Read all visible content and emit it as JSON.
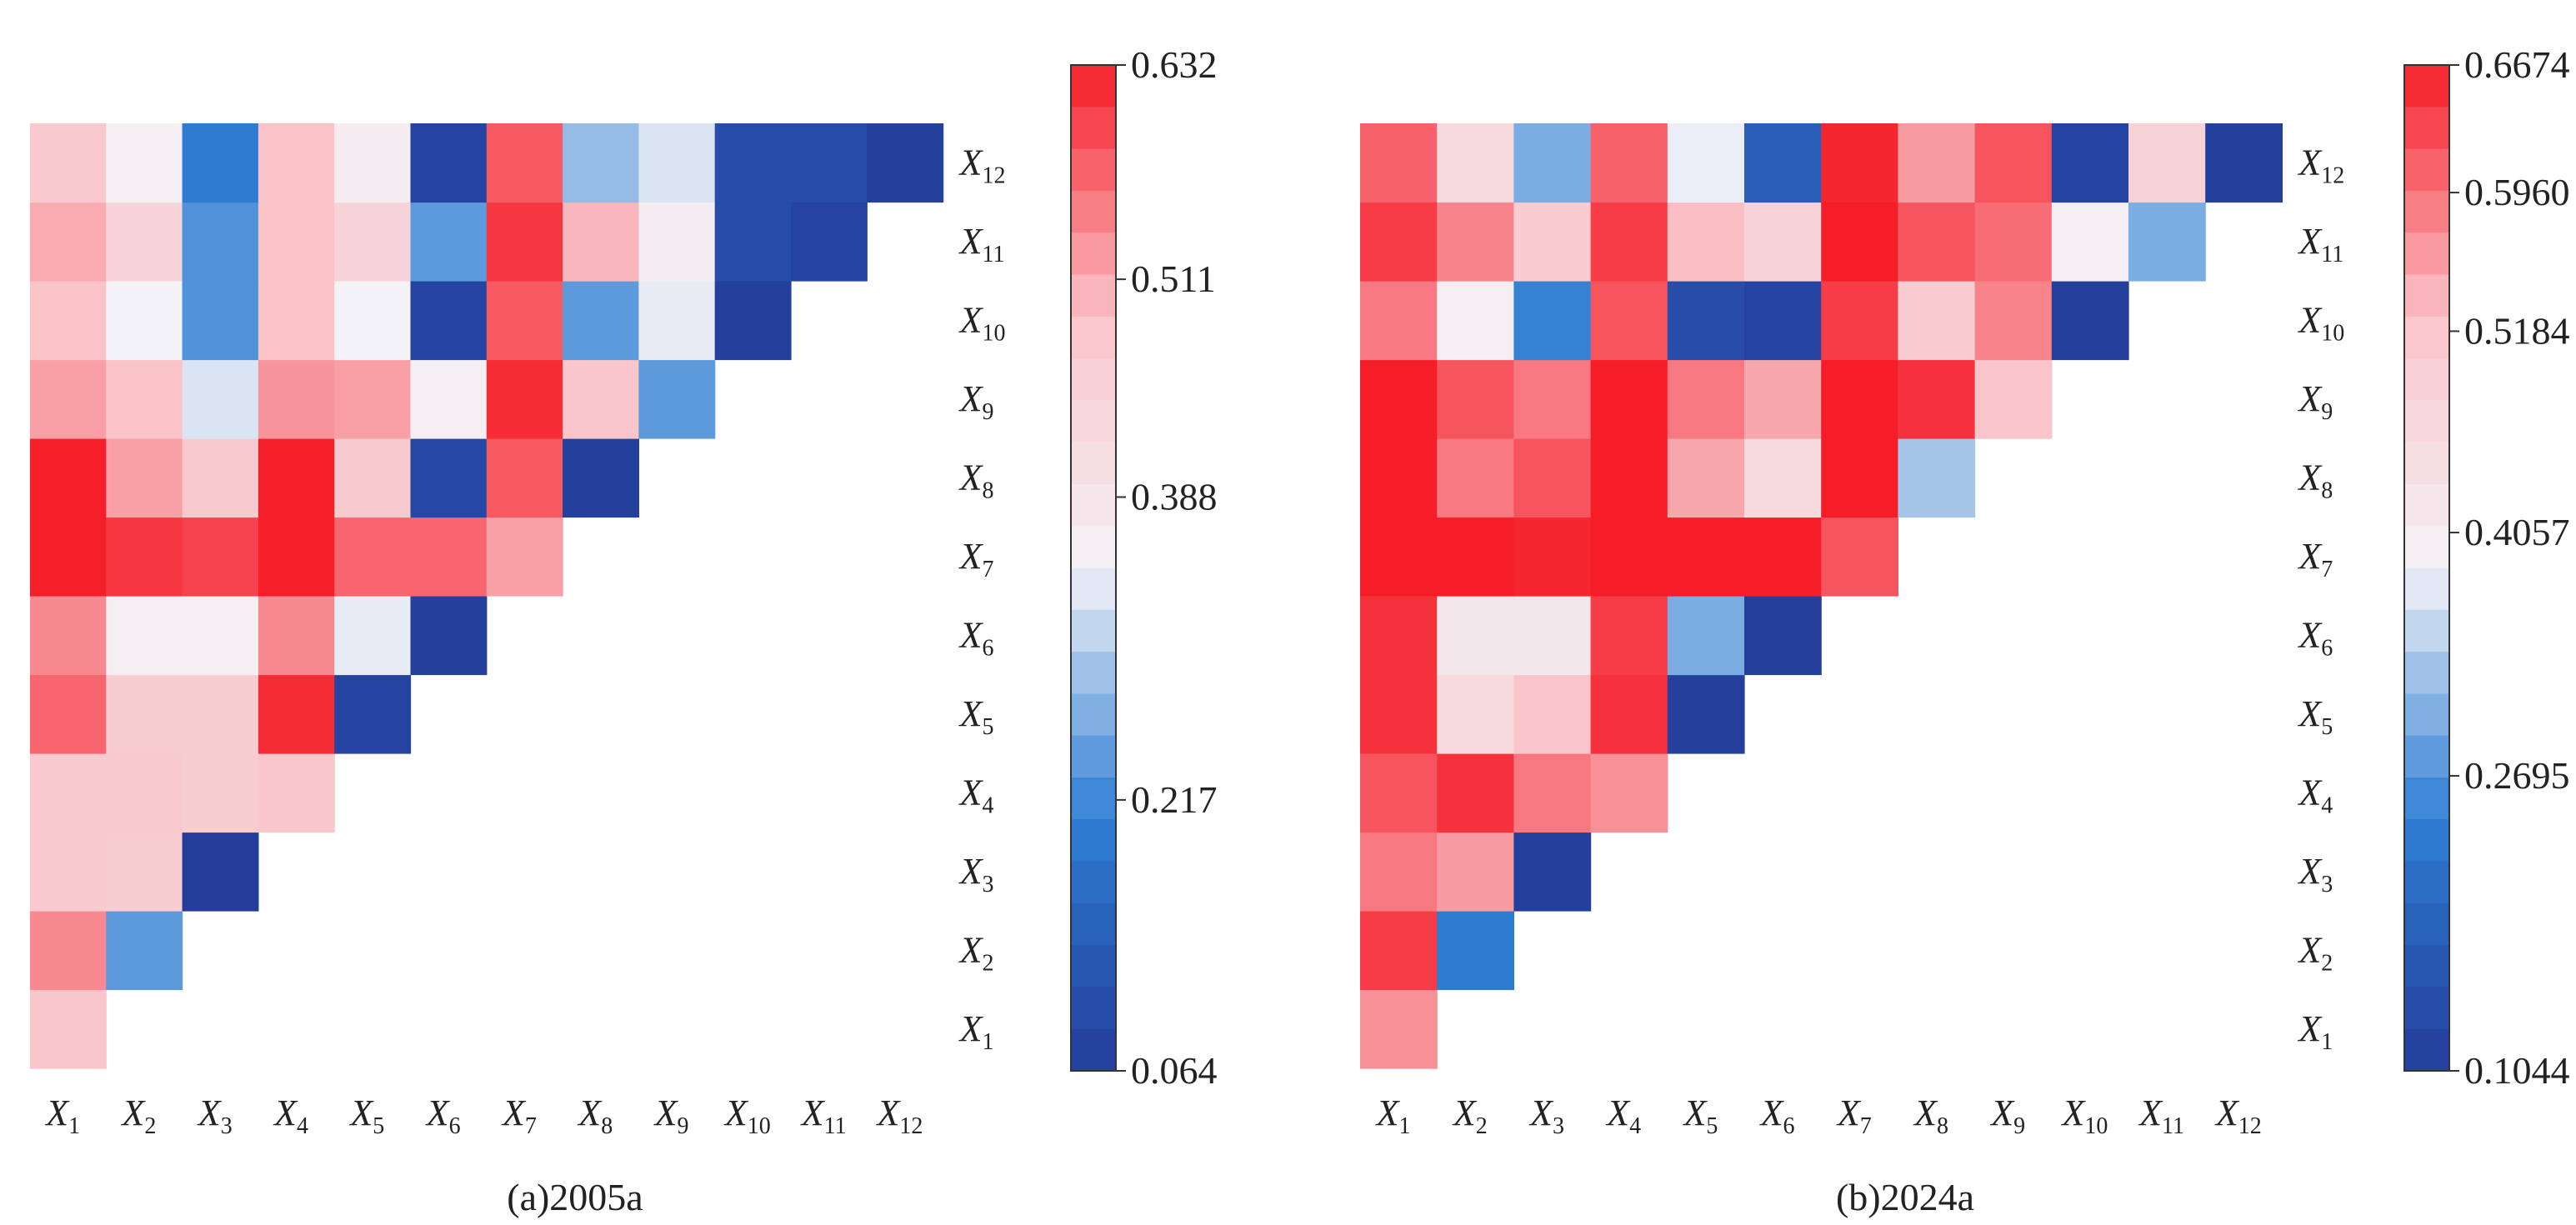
{
  "chart_data": [
    {
      "type": "heatmap",
      "title": "(a)2005a",
      "triangular": "lower",
      "row_labels": [
        "X1",
        "X2",
        "X3",
        "X4",
        "X5",
        "X6",
        "X7",
        "X8",
        "X9",
        "X10",
        "X11",
        "X12"
      ],
      "col_labels": [
        "X1",
        "X2",
        "X3",
        "X4",
        "X5",
        "X6",
        "X7",
        "X8",
        "X9",
        "X10",
        "X11",
        "X12"
      ],
      "colorbar": {
        "min": 0.064,
        "max": 0.632,
        "ticks": [
          "0.632",
          "0.511",
          "0.388",
          "0.217",
          "0.064"
        ],
        "tick_values": [
          0.632,
          0.511,
          0.388,
          0.217,
          0.064
        ]
      },
      "matrix": [
        [
          0.48
        ],
        [
          0.54,
          0.24
        ],
        [
          0.47,
          0.46,
          0.06
        ],
        [
          0.47,
          0.47,
          0.46,
          0.48
        ],
        [
          0.57,
          0.46,
          0.46,
          0.62,
          0.08
        ],
        [
          0.54,
          0.36,
          0.36,
          0.54,
          0.34,
          0.07
        ],
        [
          0.63,
          0.61,
          0.6,
          0.63,
          0.57,
          0.57,
          0.52
        ],
        [
          0.63,
          0.52,
          0.47,
          0.63,
          0.47,
          0.09,
          0.58,
          0.07
        ],
        [
          0.52,
          0.49,
          0.33,
          0.53,
          0.52,
          0.36,
          0.62,
          0.48,
          0.24
        ],
        [
          0.49,
          0.35,
          0.23,
          0.49,
          0.35,
          0.08,
          0.58,
          0.24,
          0.34,
          0.07
        ],
        [
          0.51,
          0.44,
          0.23,
          0.49,
          0.44,
          0.24,
          0.61,
          0.5,
          0.37,
          0.1,
          0.08
        ],
        [
          0.47,
          0.36,
          0.2,
          0.49,
          0.37,
          0.08,
          0.58,
          0.28,
          0.33,
          0.1,
          0.1,
          0.07
        ]
      ]
    },
    {
      "type": "heatmap",
      "title": "(b)2024a",
      "triangular": "lower",
      "row_labels": [
        "X1",
        "X2",
        "X3",
        "X4",
        "X5",
        "X6",
        "X7",
        "X8",
        "X9",
        "X10",
        "X11",
        "X12"
      ],
      "col_labels": [
        "X1",
        "X2",
        "X3",
        "X4",
        "X5",
        "X6",
        "X7",
        "X8",
        "X9",
        "X10",
        "X11",
        "X12"
      ],
      "colorbar": {
        "min": 0.1044,
        "max": 0.6674,
        "ticks": [
          "0.6674",
          "0.5960",
          "0.5184",
          "0.4057",
          "0.2695",
          "0.1044"
        ],
        "tick_values": [
          0.6674,
          0.596,
          0.5184,
          0.4057,
          0.2695,
          0.1044
        ]
      },
      "matrix": [
        [
          0.57
        ],
        [
          0.64,
          0.24
        ],
        [
          0.59,
          0.56,
          0.11
        ],
        [
          0.62,
          0.65,
          0.59,
          0.57
        ],
        [
          0.65,
          0.46,
          0.52,
          0.65,
          0.11
        ],
        [
          0.65,
          0.42,
          0.42,
          0.64,
          0.3,
          0.11
        ],
        [
          0.67,
          0.67,
          0.66,
          0.67,
          0.67,
          0.67,
          0.62
        ],
        [
          0.67,
          0.59,
          0.62,
          0.67,
          0.55,
          0.46,
          0.67,
          0.33
        ],
        [
          0.67,
          0.62,
          0.59,
          0.67,
          0.59,
          0.55,
          0.67,
          0.65,
          0.52
        ],
        [
          0.59,
          0.4,
          0.25,
          0.62,
          0.14,
          0.12,
          0.64,
          0.5,
          0.58,
          0.11
        ],
        [
          0.64,
          0.58,
          0.5,
          0.64,
          0.53,
          0.48,
          0.67,
          0.62,
          0.6,
          0.4,
          0.3
        ],
        [
          0.61,
          0.46,
          0.3,
          0.61,
          0.38,
          0.18,
          0.66,
          0.56,
          0.62,
          0.12,
          0.48,
          0.11
        ]
      ]
    }
  ],
  "colors": {
    "low": "#243c9a",
    "mid_low": "#2e7ed4",
    "mid": "#f3f3f7",
    "mid_high": "#f9c3c8",
    "high": "#f51d28",
    "background": "#ffffff"
  }
}
